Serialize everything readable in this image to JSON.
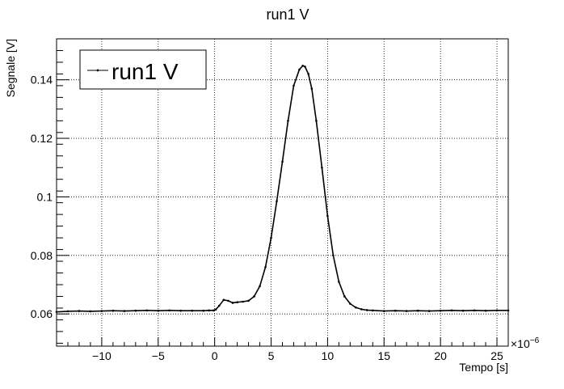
{
  "chart_data": {
    "type": "line",
    "title": "run1 V",
    "xlabel": "Tempo [s]",
    "ylabel": "Segnale [V]",
    "x_multiplier_label": "×10",
    "x_multiplier_exponent": "−6",
    "xlim": [
      -14,
      26
    ],
    "ylim": [
      0.049,
      0.154
    ],
    "x_ticks": [
      -10,
      -5,
      0,
      5,
      10,
      15,
      20,
      25
    ],
    "x_tick_labels": [
      "−10",
      "−5",
      "0",
      "5",
      "10",
      "15",
      "20",
      "25"
    ],
    "y_ticks": [
      0.06,
      0.08,
      0.1,
      0.12,
      0.14
    ],
    "y_tick_labels": [
      "0.06",
      "0.08",
      "0.1",
      "0.12",
      "0.14"
    ],
    "grid": true,
    "legend": {
      "position": "top-left",
      "entries": [
        "run1 V"
      ]
    },
    "series": [
      {
        "name": "run1 V",
        "x": [
          -14,
          -13,
          -12,
          -11,
          -10,
          -9,
          -8,
          -7,
          -6,
          -5,
          -4,
          -3,
          -2,
          -1,
          -0.5,
          -0.1,
          0.1,
          0.4,
          0.8,
          1.2,
          1.6,
          2,
          2.5,
          3,
          3.5,
          4,
          4.5,
          5,
          5.5,
          6,
          6.5,
          7,
          7.5,
          7.8,
          8,
          8.3,
          8.6,
          9,
          9.5,
          10,
          10.5,
          11,
          11.5,
          12,
          12.5,
          13,
          13.5,
          14,
          15,
          16,
          17,
          18,
          19,
          20,
          21,
          22,
          23,
          24,
          25,
          26
        ],
        "y": [
          0.0607,
          0.0609,
          0.061,
          0.0609,
          0.061,
          0.0611,
          0.061,
          0.0611,
          0.0612,
          0.0611,
          0.0612,
          0.0611,
          0.0611,
          0.0611,
          0.0612,
          0.0612,
          0.0615,
          0.0628,
          0.0648,
          0.0645,
          0.0638,
          0.064,
          0.0642,
          0.0645,
          0.066,
          0.0695,
          0.076,
          0.086,
          0.0985,
          0.112,
          0.126,
          0.138,
          0.1435,
          0.1448,
          0.1445,
          0.142,
          0.137,
          0.126,
          0.11,
          0.0935,
          0.08,
          0.071,
          0.066,
          0.0635,
          0.0622,
          0.0616,
          0.0613,
          0.0612,
          0.061,
          0.0611,
          0.061,
          0.0611,
          0.061,
          0.0611,
          0.0612,
          0.0611,
          0.0612,
          0.0611,
          0.0612,
          0.0612
        ],
        "color": "#000000"
      }
    ]
  }
}
